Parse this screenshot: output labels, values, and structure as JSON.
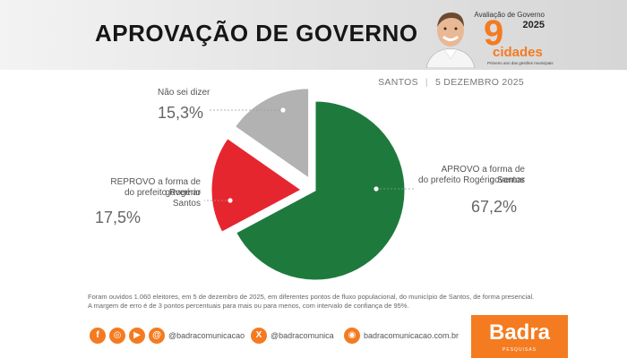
{
  "header": {
    "title": "APROVAÇÃO DE GOVERNO",
    "badge": {
      "top": "Avaliação de Governo",
      "year": "2025",
      "number": "9",
      "word": "cidades",
      "subtitle": "Primeiro ano das gestões municipais"
    }
  },
  "meta": {
    "city": "SANTOS",
    "date": "5 DEZEMBRO 2025"
  },
  "chart_data": {
    "type": "pie",
    "slices": [
      {
        "label": "APROVO a forma de governar do prefeito Rogério Santos",
        "value": 67.2,
        "value_label": "67,2%",
        "color": "#1e7a3c"
      },
      {
        "label": "REPROVO a forma de governar do prefeito Rogério Santos",
        "value": 17.5,
        "value_label": "17,5%",
        "color": "#e6262f"
      },
      {
        "label": "Não sei dizer",
        "value": 15.3,
        "value_label": "15,3%",
        "color": "#b2b2b2"
      }
    ]
  },
  "labels": {
    "approve_line1": "APROVO a forma de governar",
    "approve_line2": "do prefeito Rogério Santos",
    "approve_pct": "67,2%",
    "reject_line1": "REPROVO a forma de governar",
    "reject_line2": "do prefeito Rogério Santos",
    "reject_pct": "17,5%",
    "unsure_line1": "Não sei dizer",
    "unsure_pct": "15,3%"
  },
  "footnote": {
    "line1": "Foram ouvidos 1.060 eleitores, em 5 de dezembro de 2025, em diferentes pontos de fluxo populacional, do município de Santos, de forma presencial.",
    "line2": "A margem de erro é de 3 pontos percentuais para mais ou para menos, com intervalo de confiança de 95%."
  },
  "social": {
    "handle1": "@badracomunicacao",
    "handle2": "@badracomunica",
    "handle3": "badracomunicacao.com.br",
    "icons": [
      "facebook-icon",
      "instagram-icon",
      "youtube-icon",
      "threads-icon",
      "x-icon",
      "web-icon"
    ]
  },
  "brand": {
    "name": "Badra",
    "sub": "PESQUISAS",
    "color": "#f47b20"
  }
}
